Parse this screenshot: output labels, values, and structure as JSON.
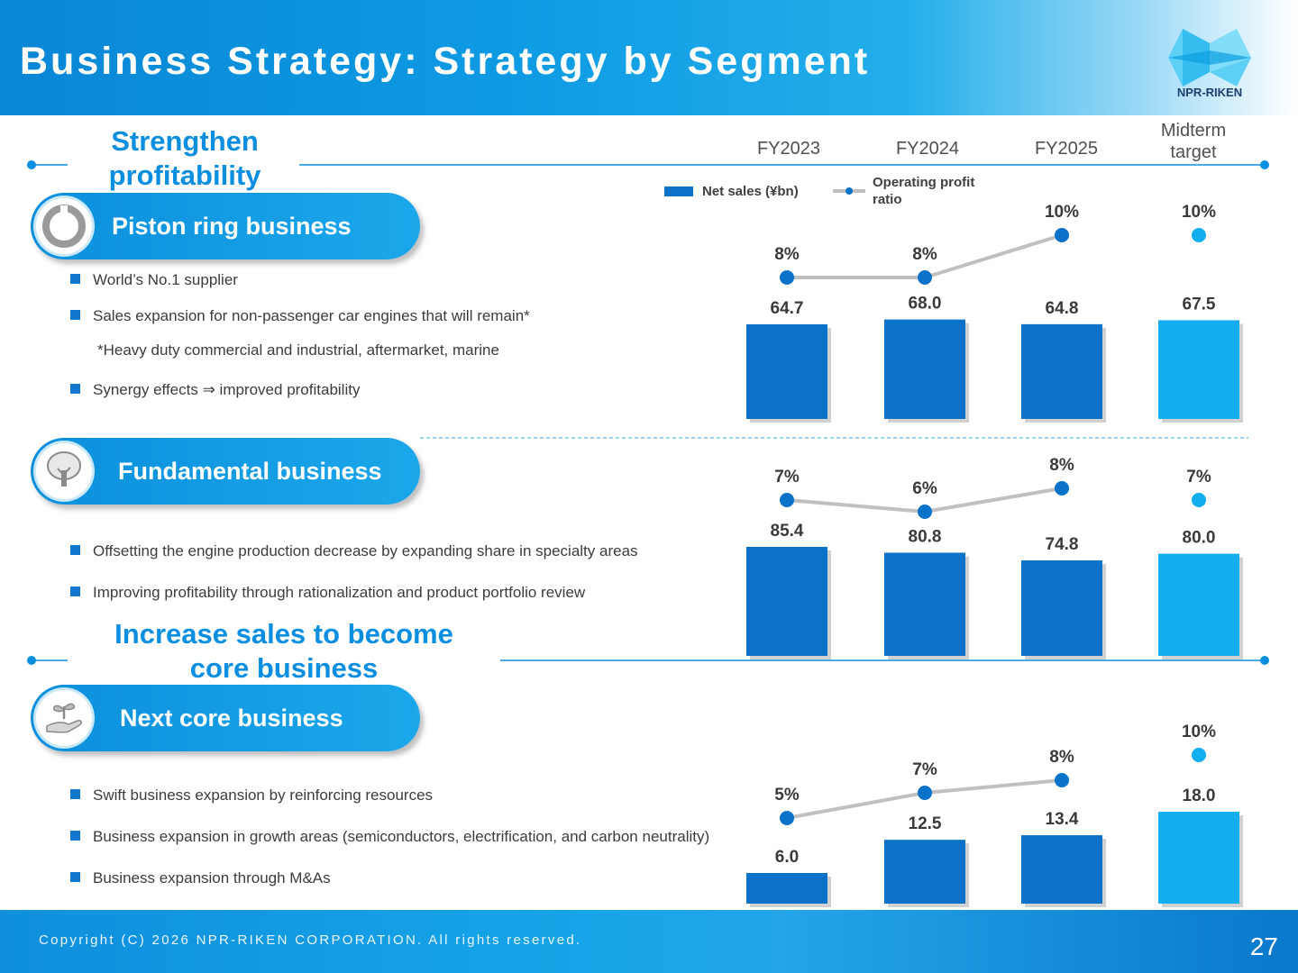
{
  "header": {
    "title": "Business Strategy: Strategy by Segment",
    "logo_text": "NPR-RIKEN"
  },
  "headings": {
    "profitability": [
      "Strengthen",
      "profitability"
    ],
    "increase_sales": [
      "Increase sales to become",
      "core business"
    ]
  },
  "columns": [
    "FY2023",
    "FY2024",
    "FY2025",
    [
      "Midterm",
      "target"
    ]
  ],
  "legend": {
    "net_sales": "Net sales (¥bn)",
    "op_ratio": [
      "Operating profit",
      "ratio"
    ]
  },
  "segments": [
    {
      "name": "Piston ring business",
      "bullets": [
        "World’s No.1 supplier",
        "Sales expansion for non-passenger car engines that will remain*",
        "Synergy effects ⇒ improved profitability"
      ],
      "note": "*Heavy duty commercial and industrial, aftermarket, marine"
    },
    {
      "name": "Fundamental business",
      "bullets": [
        "Offsetting the engine production decrease by expanding share in specialty areas",
        "Improving profitability through rationalization and product portfolio review"
      ]
    },
    {
      "name": "Next core business",
      "bullets": [
        "Swift business expansion by reinforcing resources",
        "Business expansion in growth areas (semiconductors, electrification, and carbon neutrality)",
        "Business expansion through M&As"
      ]
    }
  ],
  "chart_data": [
    {
      "type": "bar",
      "segment": "Piston ring business",
      "categories": [
        "FY2023",
        "FY2024",
        "FY2025",
        "Midterm target"
      ],
      "series": [
        {
          "name": "Net sales (¥bn)",
          "values": [
            64.7,
            68.0,
            64.8,
            67.5
          ],
          "labels": [
            "64.7",
            "68.0",
            "64.8",
            "67.5"
          ]
        },
        {
          "name": "Operating profit ratio",
          "values": [
            8,
            8,
            10,
            10
          ],
          "labels": [
            "8%",
            "8%",
            "10%",
            "10%"
          ]
        }
      ]
    },
    {
      "type": "bar",
      "segment": "Fundamental business",
      "categories": [
        "FY2023",
        "FY2024",
        "FY2025",
        "Midterm target"
      ],
      "series": [
        {
          "name": "Net sales (¥bn)",
          "values": [
            85.4,
            80.8,
            74.8,
            80.0
          ],
          "labels": [
            "85.4",
            "80.8",
            "74.8",
            "80.0"
          ]
        },
        {
          "name": "Operating profit ratio",
          "values": [
            7,
            6,
            8,
            7
          ],
          "labels": [
            "7%",
            "6%",
            "8%",
            "7%"
          ]
        }
      ]
    },
    {
      "type": "bar",
      "segment": "Next core business",
      "categories": [
        "FY2023",
        "FY2024",
        "FY2025",
        "Midterm target"
      ],
      "series": [
        {
          "name": "Net sales (¥bn)",
          "values": [
            6.0,
            12.5,
            13.4,
            18.0
          ],
          "labels": [
            "6.0",
            "12.5",
            "13.4",
            "18.0"
          ]
        },
        {
          "name": "Operating profit ratio",
          "values": [
            5,
            7,
            8,
            10
          ],
          "labels": [
            "5%",
            "7%",
            "8%",
            "10%"
          ]
        }
      ]
    }
  ],
  "colors": {
    "actual_bar": "#0a72c8",
    "target_bar": "#12aef0",
    "line": "#c0c0c0",
    "accent": "#0a8fe0"
  },
  "footer": {
    "copyright": "Copyright (C) 2026 NPR-RIKEN CORPORATION. All rights reserved.",
    "page": "27"
  }
}
